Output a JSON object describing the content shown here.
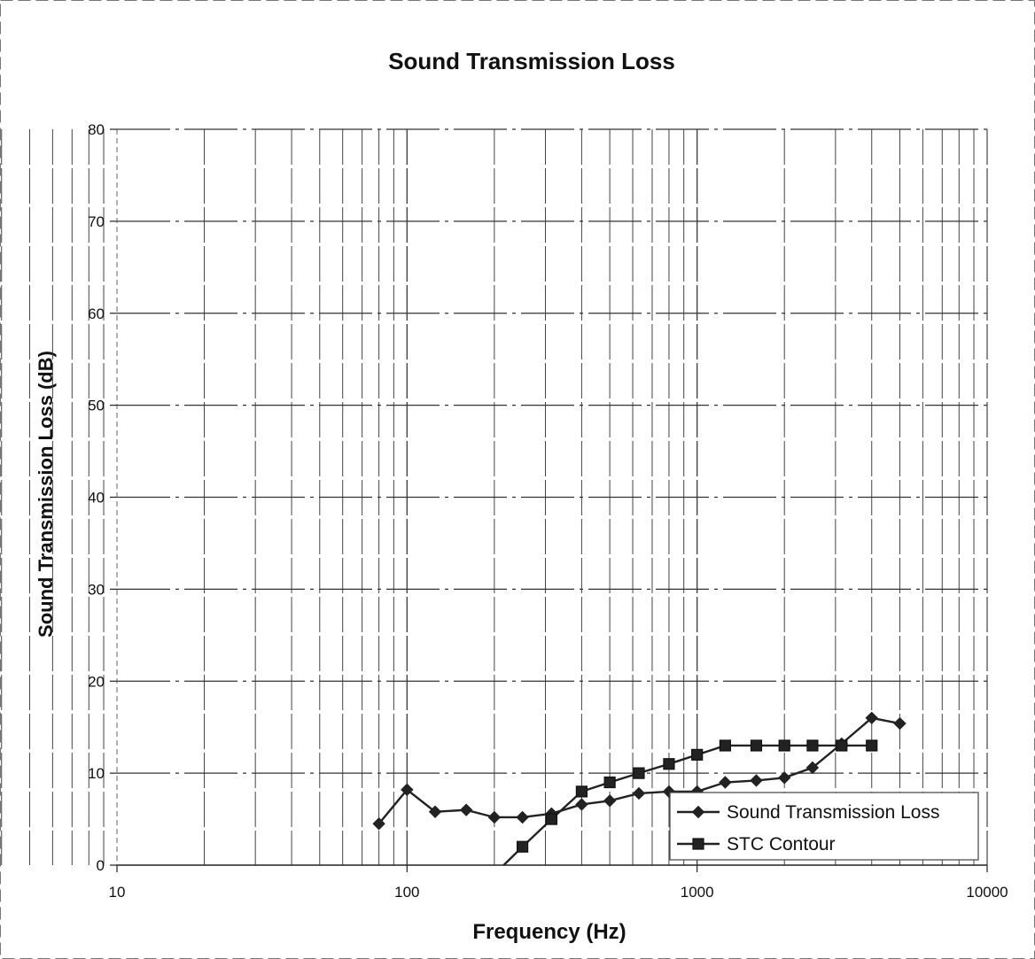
{
  "chart_data": {
    "type": "line",
    "title": "Sound Transmission Loss",
    "xlabel": "Frequency (Hz)",
    "ylabel": "Sound Transmission Loss (dB)",
    "x_scale": "log",
    "xlim": [
      10,
      10000
    ],
    "ylim": [
      0,
      80
    ],
    "x_ticks": [
      "10",
      "100",
      "1000",
      "10000"
    ],
    "y_ticks": [
      "0",
      "10",
      "20",
      "30",
      "40",
      "50",
      "60",
      "70",
      "80"
    ],
    "grid": true,
    "legend_position": "bottom-right",
    "series": [
      {
        "name": "Sound Transmission Loss",
        "marker": "diamond",
        "color": "#222222",
        "x": [
          80,
          100,
          125,
          160,
          200,
          250,
          315,
          400,
          500,
          630,
          800,
          1000,
          1250,
          1600,
          2000,
          2500,
          3150,
          4000,
          5000
        ],
        "y": [
          4.5,
          8.2,
          5.8,
          6.0,
          5.2,
          5.2,
          5.6,
          6.6,
          7.0,
          7.8,
          8.0,
          8.0,
          9.0,
          9.2,
          9.5,
          10.6,
          13.2,
          16.0,
          15.4
        ]
      },
      {
        "name": "STC Contour",
        "marker": "square",
        "color": "#222222",
        "x": [
          200,
          250,
          315,
          400,
          500,
          630,
          800,
          1000,
          1250,
          1600,
          2000,
          2500,
          3150,
          4000
        ],
        "y": [
          -1.0,
          2.0,
          5.0,
          8.0,
          9.0,
          10.0,
          11.0,
          12.0,
          13.0,
          13.0,
          13.0,
          13.0,
          13.0,
          13.0
        ]
      }
    ]
  }
}
